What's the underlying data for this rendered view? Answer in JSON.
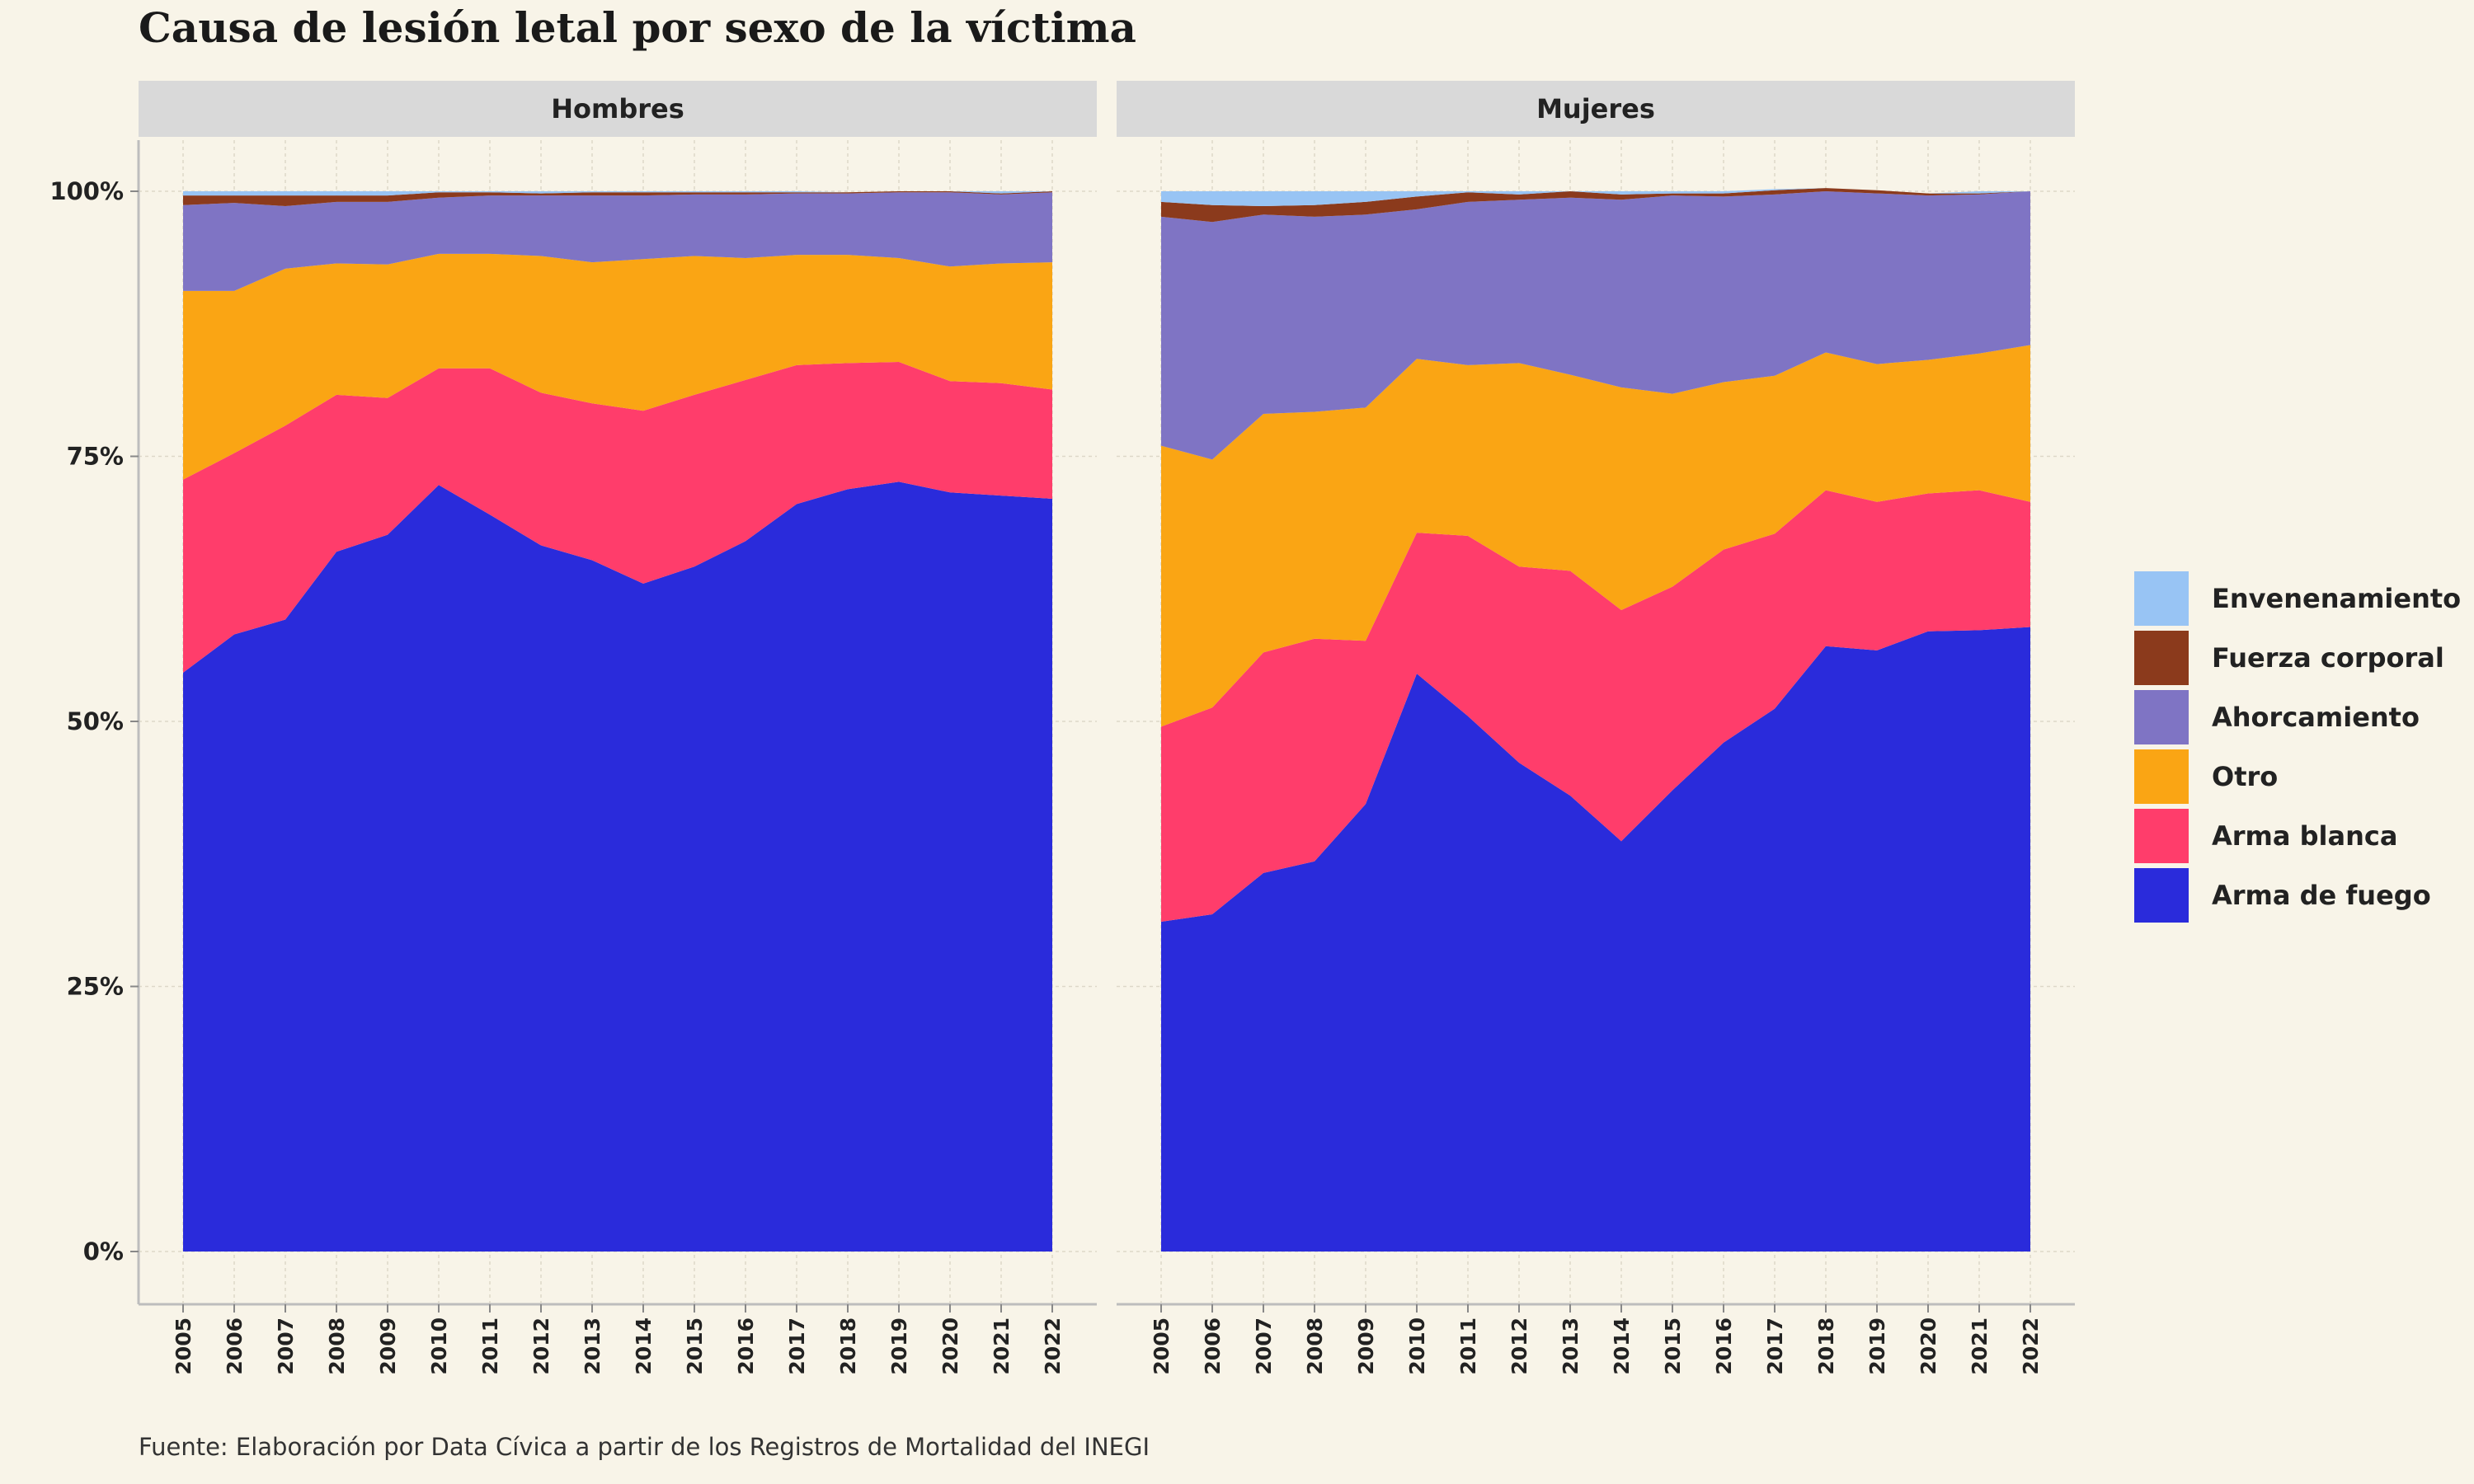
{
  "title": "Causa de lesión letal por sexo de la víctima",
  "source": "Fuente: Elaboración por Data Cívica a partir de los Registros de Mortalidad del INEGI",
  "colors": {
    "background": "#f8f4e8",
    "strip": "#d9d9d9",
    "Arma de fuego": "#2a2bdb",
    "Arma blanca": "#ff3d6b",
    "Otro": "#faa514",
    "Ahorcamiento": "#7f74c4",
    "Fuerza corporal": "#8b3a1c",
    "Envenenamiento": "#98c4f4"
  },
  "legend": [
    {
      "label": "Envenenamiento",
      "color": "#98c4f4"
    },
    {
      "label": "Fuerza corporal",
      "color": "#8b3a1c"
    },
    {
      "label": "Ahorcamiento",
      "color": "#7f74c4"
    },
    {
      "label": "Otro",
      "color": "#faa514"
    },
    {
      "label": "Arma blanca",
      "color": "#ff3d6b"
    },
    {
      "label": "Arma de fuego",
      "color": "#2a2bdb"
    }
  ],
  "chart_data": {
    "type": "area",
    "stacked": true,
    "x": [
      2005,
      2006,
      2007,
      2008,
      2009,
      2010,
      2011,
      2012,
      2013,
      2014,
      2015,
      2016,
      2017,
      2018,
      2019,
      2020,
      2021,
      2022
    ],
    "x_tick_labels": [
      "2005",
      "2006",
      "2007",
      "2008",
      "2009",
      "2010",
      "2011",
      "2012",
      "2013",
      "2014",
      "2015",
      "2016",
      "2017",
      "2018",
      "2019",
      "2020",
      "2021",
      "2022"
    ],
    "ylim": [
      0,
      100
    ],
    "y_ticks": [
      0,
      25,
      50,
      75,
      100
    ],
    "y_tick_labels": [
      "0%",
      "25%",
      "50%",
      "75%",
      "100%"
    ],
    "grid": true,
    "legend_position": "right",
    "series_order_bottom_to_top": [
      "Arma de fuego",
      "Arma blanca",
      "Otro",
      "Ahorcamiento",
      "Fuerza corporal",
      "Envenenamiento"
    ],
    "panels": [
      {
        "facet": "Hombres",
        "series": [
          {
            "name": "Arma de fuego",
            "values": [
              54.6,
              58.2,
              59.6,
              66,
              67.6,
              72.3,
              69.5,
              66.6,
              65.2,
              63,
              64.6,
              67,
              70.5,
              71.9,
              72.6,
              71.6,
              71.3,
              71
            ]
          },
          {
            "name": "Arma blanca",
            "values": [
              18.2,
              17.1,
              18.3,
              14.8,
              12.9,
              11,
              13.8,
              14.4,
              14.8,
              16.3,
              16.2,
              15.2,
              13.1,
              11.9,
              11.3,
              10.5,
              10.6,
              10.3
            ]
          },
          {
            "name": "Otro",
            "values": [
              17.8,
              15.3,
              14.8,
              12.4,
              12.6,
              10.8,
              10.8,
              12.9,
              13.3,
              14.3,
              13.1,
              11.5,
              10.4,
              10.2,
              9.8,
              10.8,
              11.3,
              12
            ]
          },
          {
            "name": "Ahorcamiento",
            "values": [
              8.1,
              8.3,
              5.9,
              5.8,
              5.9,
              5.3,
              5.5,
              5.7,
              6.3,
              6,
              5.8,
              6,
              5.8,
              5.8,
              6.2,
              7,
              6.5,
              6.6
            ]
          },
          {
            "name": "Fuerza corporal",
            "values": [
              0.9,
              0.7,
              1,
              0.6,
              0.6,
              0.5,
              0.3,
              0.2,
              0.3,
              0.3,
              0.2,
              0.2,
              0.1,
              0.1,
              0.1,
              0.1,
              0.1,
              0.1
            ]
          },
          {
            "name": "Envenenamiento",
            "values": [
              0.4,
              0.4,
              0.4,
              0.4,
              0.4,
              0.1,
              0.1,
              0.2,
              0.1,
              0.1,
              0.1,
              0.1,
              0.1,
              0,
              0,
              0,
              0.2,
              0
            ]
          }
        ]
      },
      {
        "facet": "Mujeres",
        "series": [
          {
            "name": "Arma de fuego",
            "values": [
              31.1,
              31.8,
              35.7,
              36.8,
              42.2,
              54.5,
              50.5,
              46.1,
              43,
              38.7,
              43.5,
              48,
              51.2,
              57.1,
              56.7,
              58.5,
              58.6,
              58.9
            ]
          },
          {
            "name": "Arma blanca",
            "values": [
              18.4,
              19.5,
              20.8,
              21,
              15.4,
              13.3,
              17,
              18.5,
              21.2,
              21.8,
              19.2,
              18.2,
              16.5,
              14.7,
              14,
              13,
              13.2,
              11.8
            ]
          },
          {
            "name": "Otro",
            "values": [
              26.5,
              23.4,
              22.5,
              21.4,
              22,
              16.4,
              16.1,
              19.2,
              18.5,
              21,
              18.2,
              15.8,
              14.9,
              13,
              13,
              12.6,
              12.9,
              14.8
            ]
          },
          {
            "name": "Ahorcamiento",
            "values": [
              21.6,
              22.4,
              18.8,
              18.4,
              18.2,
              14.1,
              15.4,
              15.4,
              16.7,
              17.7,
              18.7,
              17.5,
              17.1,
              15.2,
              16.1,
              15.5,
              15,
              14.5
            ]
          },
          {
            "name": "Fuerza corporal",
            "values": [
              1.4,
              1.6,
              0.8,
              1.1,
              1.2,
              1.2,
              0.9,
              0.5,
              0.6,
              0.5,
              0.2,
              0.3,
              0.4,
              0.3,
              0.3,
              0.2,
              0.1,
              0
            ]
          },
          {
            "name": "Envenenamiento",
            "values": [
              1,
              1.3,
              1.4,
              1.3,
              1,
              0.5,
              0.1,
              0.3,
              0,
              0.3,
              0.2,
              0.2,
              0.1,
              0,
              0,
              0,
              0.2,
              0
            ]
          }
        ]
      }
    ]
  }
}
